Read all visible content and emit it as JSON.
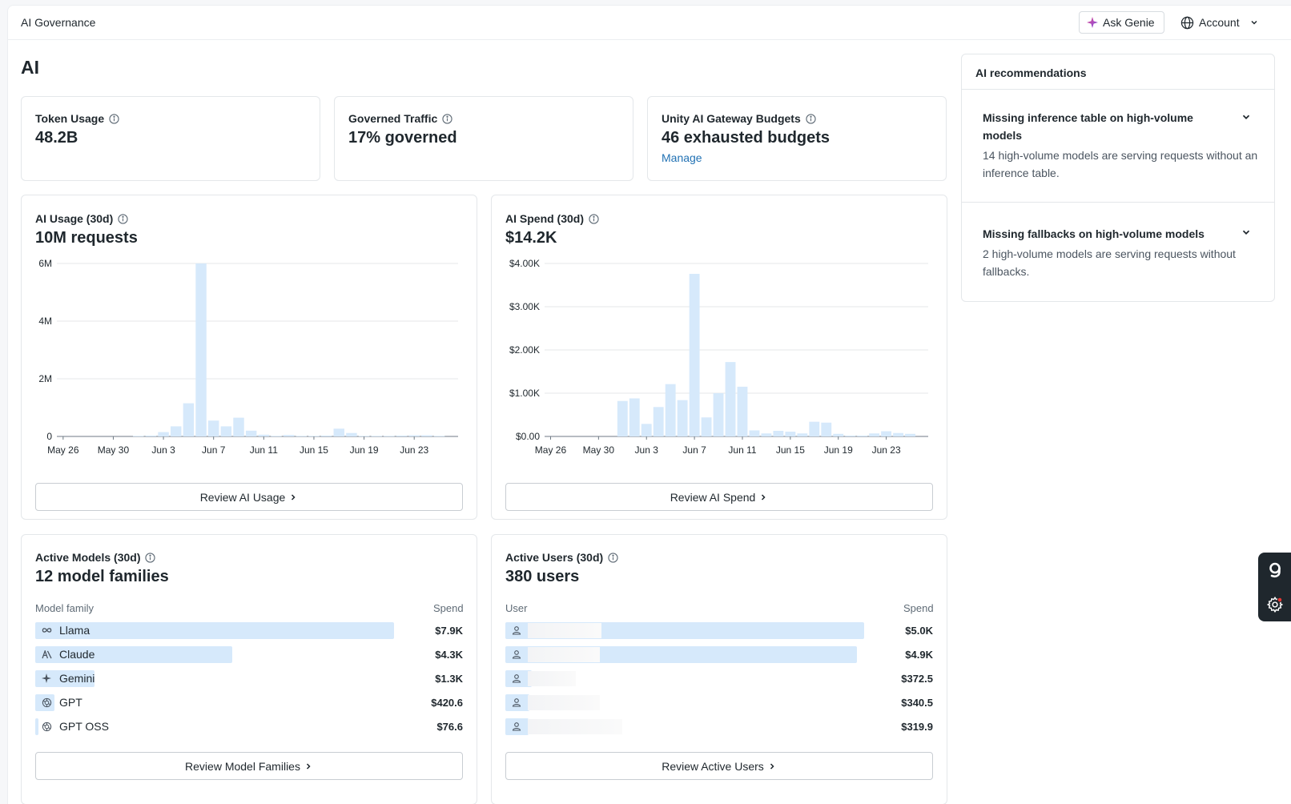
{
  "app": {
    "title": "AI Governance"
  },
  "header": {
    "ask_genie": "Ask Genie",
    "account": "Account"
  },
  "page": {
    "title": "AI"
  },
  "kpis": {
    "token_usage": {
      "label": "Token Usage",
      "value": "48.2B"
    },
    "governed_traffic": {
      "label": "Governed Traffic",
      "value": "17% governed"
    },
    "budgets": {
      "label": "Unity AI Gateway Budgets",
      "value": "46 exhausted budgets",
      "link": "Manage"
    }
  },
  "usage": {
    "label": "AI Usage (30d)",
    "value": "10M requests",
    "button": "Review AI Usage"
  },
  "spend": {
    "label": "AI Spend (30d)",
    "value": "$14.2K",
    "button": "Review AI Spend"
  },
  "models": {
    "label": "Active Models (30d)",
    "value": "12 model families",
    "col_left": "Model family",
    "col_right": "Spend",
    "button": "Review Model Families",
    "rows": [
      {
        "name": "Llama",
        "spend": "$7.9K",
        "icon": "infinity-icon",
        "fraction": 1.0
      },
      {
        "name": "Claude",
        "spend": "$4.3K",
        "icon": "anthropic-icon",
        "fraction": 0.55
      },
      {
        "name": "Gemini",
        "spend": "$1.3K",
        "icon": "sparkle-icon",
        "fraction": 0.165
      },
      {
        "name": "GPT",
        "spend": "$420.6",
        "icon": "openai-icon",
        "fraction": 0.053
      },
      {
        "name": "GPT OSS",
        "spend": "$76.6",
        "icon": "openai-icon",
        "fraction": 0.01
      }
    ]
  },
  "users": {
    "label": "Active Users (30d)",
    "value": "380 users",
    "col_left": "User",
    "col_right": "Spend",
    "button": "Review Active Users",
    "rows": [
      {
        "spend": "$5.0K",
        "icon": "user-icon",
        "fraction": 1.0
      },
      {
        "spend": "$4.9K",
        "icon": "user-icon",
        "fraction": 0.98
      },
      {
        "spend": "$372.5",
        "icon": "user-icon",
        "fraction": 0.074
      },
      {
        "spend": "$340.5",
        "icon": "user-icon",
        "fraction": 0.068
      },
      {
        "spend": "$319.9",
        "icon": "user-icon",
        "fraction": 0.064
      }
    ]
  },
  "recommendations": {
    "title": "AI recommendations",
    "items": [
      {
        "title": "Missing inference table on high-volume models",
        "desc": "14 high-volume models are serving requests without an inference table."
      },
      {
        "title": "Missing fallbacks on high-volume models",
        "desc": "2 high-volume models are serving requests without fallbacks."
      }
    ]
  },
  "colors": {
    "accent": "#2272b4",
    "bar": "#d6e9fb",
    "dock": "#1f272d"
  },
  "chart_data": [
    {
      "type": "bar",
      "title": "AI Usage (30d)",
      "xlabel": "",
      "ylabel": "",
      "ylim": [
        0,
        6000000
      ],
      "yticks": [
        0,
        2000000,
        4000000,
        6000000
      ],
      "ytick_labels": [
        "0",
        "2M",
        "4M",
        "6M"
      ],
      "xtick_labels": [
        "May 26",
        "May 30",
        "Jun 3",
        "Jun 7",
        "Jun 11",
        "Jun 15",
        "Jun 19",
        "Jun 23"
      ],
      "xtick_index": [
        0,
        4,
        8,
        12,
        16,
        20,
        24,
        28
      ],
      "categories": [
        "May 26",
        "May 27",
        "May 28",
        "May 29",
        "May 30",
        "May 31",
        "Jun 1",
        "Jun 2",
        "Jun 3",
        "Jun 4",
        "Jun 5",
        "Jun 6",
        "Jun 7",
        "Jun 8",
        "Jun 9",
        "Jun 10",
        "Jun 11",
        "Jun 12",
        "Jun 13",
        "Jun 14",
        "Jun 15",
        "Jun 16",
        "Jun 17",
        "Jun 18",
        "Jun 19",
        "Jun 20",
        "Jun 21",
        "Jun 22",
        "Jun 23",
        "Jun 24",
        "Jun 25",
        "Jun 26"
      ],
      "values": [
        0,
        0,
        0,
        0,
        0,
        0,
        20000,
        30000,
        150000,
        350000,
        1150000,
        6000000,
        550000,
        350000,
        650000,
        200000,
        60000,
        20000,
        50000,
        20000,
        20000,
        30000,
        270000,
        120000,
        20000,
        20000,
        20000,
        30000,
        40000,
        40000,
        20000,
        0
      ]
    },
    {
      "type": "bar",
      "title": "AI Spend (30d)",
      "xlabel": "",
      "ylabel": "",
      "ylim": [
        0,
        4000
      ],
      "yticks": [
        0,
        1000,
        2000,
        3000,
        4000
      ],
      "ytick_labels": [
        "$0.00",
        "$1.00K",
        "$2.00K",
        "$3.00K",
        "$4.00K"
      ],
      "xtick_labels": [
        "May 26",
        "May 30",
        "Jun 3",
        "Jun 7",
        "Jun 11",
        "Jun 15",
        "Jun 19",
        "Jun 23"
      ],
      "xtick_index": [
        0,
        4,
        8,
        12,
        16,
        20,
        24,
        28
      ],
      "categories": [
        "May 26",
        "May 27",
        "May 28",
        "May 29",
        "May 30",
        "May 31",
        "Jun 1",
        "Jun 2",
        "Jun 3",
        "Jun 4",
        "Jun 5",
        "Jun 6",
        "Jun 7",
        "Jun 8",
        "Jun 9",
        "Jun 10",
        "Jun 11",
        "Jun 12",
        "Jun 13",
        "Jun 14",
        "Jun 15",
        "Jun 16",
        "Jun 17",
        "Jun 18",
        "Jun 19",
        "Jun 20",
        "Jun 21",
        "Jun 22",
        "Jun 23",
        "Jun 24",
        "Jun 25",
        "Jun 26"
      ],
      "values": [
        0,
        0,
        0,
        0,
        0,
        0,
        820,
        880,
        290,
        680,
        1210,
        840,
        3760,
        440,
        1000,
        1720,
        1150,
        140,
        70,
        130,
        110,
        70,
        340,
        320,
        60,
        20,
        20,
        70,
        120,
        80,
        60,
        0
      ]
    }
  ]
}
